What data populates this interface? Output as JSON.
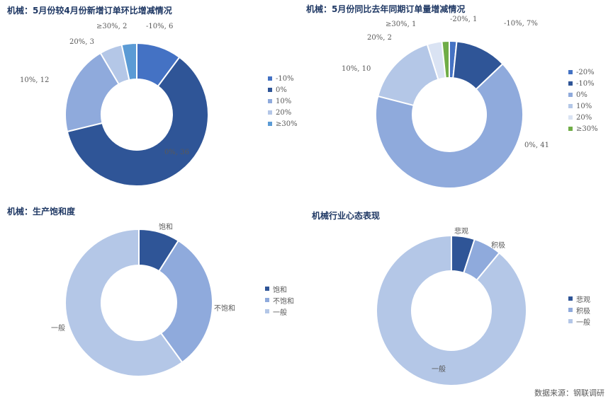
{
  "chart_data": [
    {
      "type": "pie",
      "title": "机械：5月份较4月份新增订单环比增减情况",
      "categories": [
        "-10%",
        "0%",
        "10%",
        "20%",
        "≥30%"
      ],
      "values": [
        6,
        36,
        12,
        3,
        2
      ],
      "data_labels": [
        "-10%, 6",
        "0%, 36",
        "10%, 12",
        "20%, 3",
        "≥30%, 2"
      ],
      "colors": [
        "#4472c4",
        "#2f5597",
        "#8faadc",
        "#b4c7e7",
        "#5b9bd5"
      ],
      "legend": "right"
    },
    {
      "type": "pie",
      "title": "机械：5月份同比去年同期订单量增减情况",
      "categories": [
        "-20%",
        "-10%",
        "0%",
        "10%",
        "20%",
        "≥30%"
      ],
      "values": [
        1,
        7,
        41,
        10,
        2,
        1
      ],
      "data_labels": [
        "-20%, 1",
        "-10%, 7%",
        "0%, 41",
        "10%, 10",
        "20%, 2",
        "≥30%, 1"
      ],
      "colors": [
        "#4472c4",
        "#2f5597",
        "#8faadc",
        "#b4c7e7",
        "#dae3f3",
        "#70ad47"
      ],
      "legend": "right"
    },
    {
      "type": "pie",
      "title": "机械：生产饱和度",
      "categories": [
        "饱和",
        "不饱和",
        "一般"
      ],
      "values": [
        9,
        31,
        60
      ],
      "data_labels": [
        "饱和",
        "不饱和",
        "一般"
      ],
      "colors": [
        "#2f5597",
        "#8faadc",
        "#b4c7e7"
      ],
      "legend": "right"
    },
    {
      "type": "pie",
      "title": "机械行业心态表现",
      "categories": [
        "悲观",
        "积极",
        "一般"
      ],
      "values": [
        5,
        6,
        89
      ],
      "data_labels": [
        "悲观",
        "积极",
        "一般"
      ],
      "colors": [
        "#2f5597",
        "#8faadc",
        "#b4c7e7"
      ],
      "legend": "right"
    }
  ],
  "source": "数据来源：钢联调研"
}
